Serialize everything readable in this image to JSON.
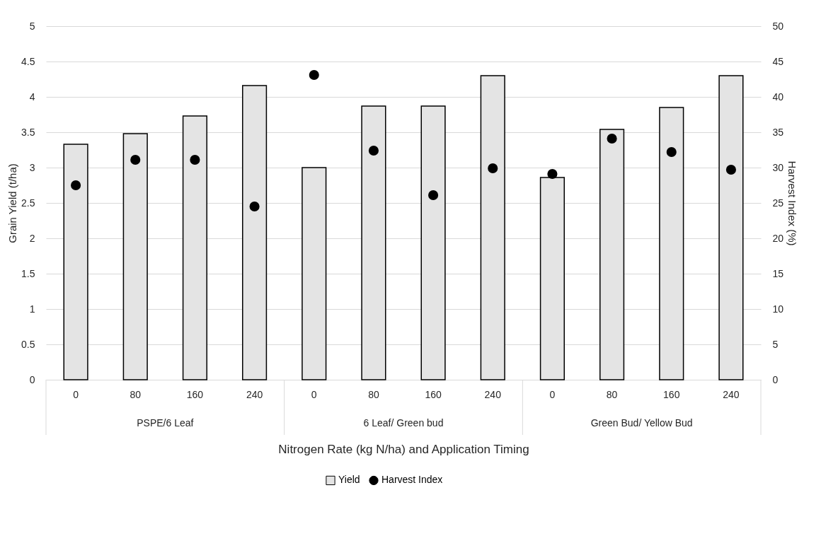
{
  "chart_data": {
    "type": "bar",
    "categories": [
      "0",
      "80",
      "160",
      "240",
      "0",
      "80",
      "160",
      "240",
      "0",
      "80",
      "160",
      "240"
    ],
    "annotations": [
      "PSPE/6 Leaf",
      "6 Leaf/ Green bud",
      "Green Bud/ Yellow Bud"
    ],
    "xlabel": "Nitrogen Rate (kg N/ha) and Application Timing",
    "ylabel": "Grain Yield (t/ha)",
    "y2label": "Harvest Index (%)",
    "series": [
      {
        "name": "Yield",
        "type": "bar",
        "color": "#e4e4e4",
        "values": [
          3.33,
          3.48,
          3.73,
          4.16,
          3.0,
          3.87,
          3.87,
          4.3,
          2.86,
          3.54,
          3.85,
          4.3
        ]
      },
      {
        "name": "Harvest Index",
        "type": "scatter",
        "axis": "y2",
        "color": "#000000",
        "values": [
          27.5,
          31.1,
          31.1,
          24.5,
          43.1,
          32.4,
          26.1,
          29.9,
          29.1,
          34.1,
          32.2,
          29.7
        ]
      }
    ],
    "ylim": [
      0,
      5
    ],
    "yticks": [
      0,
      0.5,
      1,
      1.5,
      2,
      2.5,
      3,
      3.5,
      4,
      4.5,
      5
    ],
    "y2lim": [
      0,
      50
    ],
    "y2ticks": [
      0,
      5,
      10,
      15,
      20,
      25,
      30,
      35,
      40,
      45,
      50
    ],
    "grid": "y",
    "legend": "bottom",
    "marker": "circle"
  }
}
